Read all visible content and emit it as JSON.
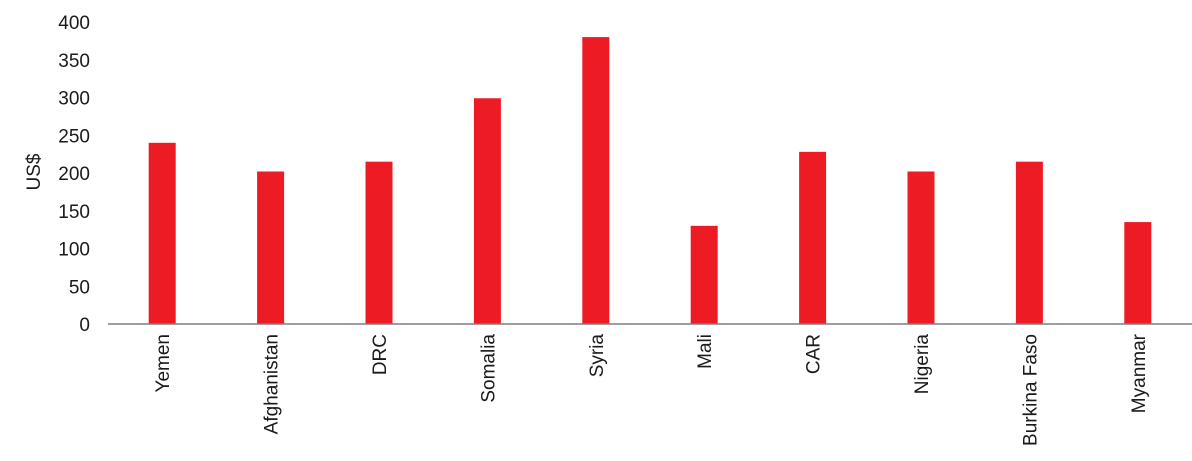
{
  "chart_data": {
    "type": "bar",
    "ylabel": "US$",
    "xlabel": "",
    "ylim": [
      0,
      400
    ],
    "yticks": [
      0,
      50,
      100,
      150,
      200,
      250,
      300,
      350,
      400
    ],
    "grid": false,
    "bar_color": "#ed1c24",
    "categories": [
      "Yemen",
      "Afghanistan",
      "DRC",
      "Somalia",
      "Syria",
      "Mali",
      "CAR",
      "Nigeria",
      "Burkina Faso",
      "Myanmar"
    ],
    "values": [
      240,
      202,
      215,
      299,
      380,
      130,
      228,
      202,
      215,
      135
    ]
  }
}
